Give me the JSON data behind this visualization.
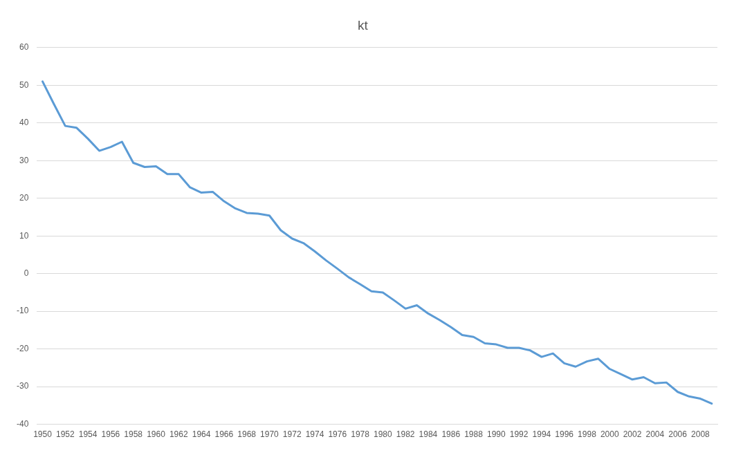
{
  "chart_data": {
    "type": "line",
    "title": "kt",
    "categories": [
      "1950",
      null,
      "1952",
      null,
      "1954",
      null,
      "1956",
      null,
      "1958",
      null,
      "1960",
      null,
      "1962",
      null,
      "1964",
      null,
      "1966",
      null,
      "1968",
      null,
      "1970",
      null,
      "1972",
      null,
      "1974",
      null,
      "1976",
      null,
      "1978",
      null,
      "1980",
      null,
      "1982",
      null,
      "1984",
      null,
      "1986",
      null,
      "1988",
      null,
      "1990",
      null,
      "1992",
      null,
      "1994",
      null,
      "1996",
      null,
      "1998",
      null,
      "2000",
      null,
      "2002",
      null,
      "2004",
      null,
      "2006",
      null,
      "2008",
      null
    ],
    "series": [
      {
        "color": "#5b9bd5",
        "values": [
          51,
          45,
          39.2,
          38.7,
          35.8,
          32.6,
          33.6,
          35,
          29.4,
          28.3,
          28.5,
          26.4,
          26.4,
          22.9,
          21.5,
          21.7,
          19.2,
          17.3,
          16.1,
          15.9,
          15.4,
          11.5,
          9.3,
          8.1,
          5.9,
          3.5,
          1.3,
          -1,
          -2.8,
          -4.7,
          -5,
          -7.1,
          -9.3,
          -8.4,
          -10.6,
          -12.3,
          -14.2,
          -16.3,
          -16.8,
          -18.5,
          -18.8,
          -19.7,
          -19.7,
          -20.4,
          -22.1,
          -21.2,
          -23.8,
          -24.7,
          -23.3,
          -22.6,
          -25.3,
          -26.7,
          -28.1,
          -27.5,
          -29.1,
          -28.9,
          -31.4,
          -32.6,
          -33.2,
          -34.5
        ]
      }
    ],
    "ylim": [
      -40,
      60
    ],
    "yticks": [
      -40,
      -30,
      -20,
      -10,
      0,
      10,
      20,
      30,
      40,
      50,
      60
    ],
    "grid": "y",
    "legend": false,
    "marker": "none",
    "line_style": "solid"
  }
}
